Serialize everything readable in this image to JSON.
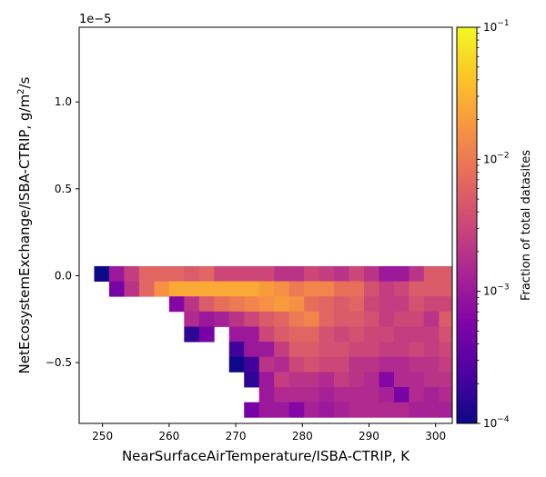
{
  "chart_data": {
    "type": "heatmap",
    "xlabel": "NearSurfaceAirTemperature/ISBA-CTRIP,  K",
    "ylabel_main": "NetEcosystemExchange/ISBA-CTRIP,  g/m",
    "ylabel_sup": "2",
    "ylabel_tail": "/s",
    "y_offset_label": "1e−5",
    "xlim": [
      246.5,
      302.5
    ],
    "ylim": [
      -0.85,
      1.43
    ],
    "x_ticks": [
      250,
      260,
      270,
      280,
      290,
      300
    ],
    "x_tick_labels": [
      "250",
      "260",
      "270",
      "280",
      "290",
      "300"
    ],
    "y_ticks": [
      1.0,
      0.5,
      0.0,
      -0.5
    ],
    "y_tick_labels": [
      "1.0",
      "0.5",
      "0.0",
      "−0.5"
    ],
    "colorbar": {
      "label": "Fraction of total datasites",
      "scale": "log",
      "range": [
        0.0001,
        0.1
      ],
      "colormap": "plasma",
      "ticks": [
        {
          "mantissa": "10",
          "exp": "−1",
          "value": 0.1
        },
        {
          "mantissa": "10",
          "exp": "−2",
          "value": 0.01
        },
        {
          "mantissa": "10",
          "exp": "−3",
          "value": 0.001
        },
        {
          "mantissa": "10",
          "exp": "−4",
          "value": 0.0001
        }
      ]
    },
    "bins": {
      "x_start": 248.75,
      "x_width": 2.25,
      "y_top": 0.055,
      "y_height": 0.087
    },
    "grid": [
      [
        -4.0,
        -3.0,
        -2.6,
        -2.2,
        -2.2,
        -2.2,
        -2.3,
        -2.2,
        -2.5,
        -2.5,
        -2.5,
        -2.5,
        -2.7,
        -2.7,
        -2.5,
        -2.6,
        -2.7,
        -2.5,
        -2.7,
        -3.0,
        -3.0,
        -2.7,
        -2.3,
        -2.3,
        -2.3,
        -2.3,
        -2.3,
        -2.3
      ],
      [
        null,
        -3.3,
        -2.7,
        -2.2,
        -1.8,
        -1.6,
        -1.6,
        -1.6,
        -1.6,
        -1.6,
        -1.6,
        -1.7,
        -1.8,
        -2.0,
        -1.9,
        -1.9,
        -2.1,
        -2.1,
        -2.4,
        -2.6,
        -2.5,
        -2.3,
        -2.3,
        -2.3,
        -2.2,
        -1.6,
        -2.3,
        -2.3
      ],
      [
        null,
        null,
        null,
        null,
        null,
        -3.2,
        -2.7,
        -2.3,
        -2.1,
        -2.0,
        -1.9,
        -1.8,
        -1.7,
        -1.8,
        -2.1,
        -2.2,
        -2.3,
        -2.2,
        -2.5,
        -2.6,
        -2.6,
        -2.4,
        -2.5,
        -2.5,
        -2.2,
        -2.0,
        -1.6,
        -2.4
      ],
      [
        null,
        null,
        null,
        null,
        null,
        null,
        -2.8,
        -3.0,
        -2.9,
        -2.7,
        -2.5,
        -2.3,
        -2.2,
        -2.0,
        -1.9,
        -2.2,
        -2.3,
        -2.3,
        -2.4,
        -2.6,
        -2.5,
        -2.5,
        -2.7,
        -2.3,
        -2.2,
        -2.2,
        -2.2,
        -2.2
      ],
      [
        null,
        null,
        null,
        null,
        null,
        null,
        -3.8,
        -3.3,
        null,
        -3.0,
        -3.0,
        -2.5,
        -2.3,
        -2.2,
        -2.2,
        -2.4,
        -2.5,
        -2.4,
        -2.5,
        -2.5,
        -2.6,
        -2.6,
        -2.6,
        -2.4,
        -2.1,
        -2.3,
        -2.2,
        -2.2
      ],
      [
        null,
        null,
        null,
        null,
        null,
        null,
        null,
        null,
        null,
        -3.7,
        -3.0,
        -3.0,
        -2.6,
        -2.3,
        -2.3,
        -2.4,
        -2.4,
        -2.5,
        -2.5,
        -2.6,
        -2.6,
        -2.5,
        -2.6,
        -2.5,
        -2.2,
        -2.3,
        -2.3,
        -2.2
      ],
      [
        null,
        null,
        null,
        null,
        null,
        null,
        null,
        null,
        null,
        -4.0,
        -3.7,
        -2.7,
        -2.8,
        -2.5,
        -2.4,
        -2.5,
        -2.5,
        -2.7,
        -2.7,
        -2.8,
        -2.8,
        -2.7,
        -2.7,
        -2.6,
        -2.6,
        -2.4,
        -2.4,
        -2.3
      ],
      [
        null,
        null,
        null,
        null,
        null,
        null,
        null,
        null,
        null,
        null,
        -3.8,
        -3.0,
        -2.6,
        -2.7,
        -2.7,
        -2.8,
        -2.6,
        -2.7,
        -2.8,
        -3.2,
        -2.8,
        -2.8,
        -2.7,
        -2.7,
        -2.6,
        -2.6,
        -2.6,
        -2.5
      ],
      [
        null,
        null,
        null,
        null,
        null,
        null,
        null,
        null,
        null,
        null,
        null,
        -3.0,
        -2.8,
        -2.8,
        -2.8,
        -2.9,
        -2.8,
        -2.8,
        -2.8,
        -2.9,
        -3.3,
        -2.8,
        -2.9,
        -2.8,
        -2.7,
        -2.8,
        -2.7,
        -2.8
      ],
      [
        null,
        null,
        null,
        null,
        null,
        null,
        null,
        null,
        null,
        null,
        -3.3,
        -3.0,
        -3.0,
        -3.2,
        -2.9,
        -3.0,
        -2.9,
        -2.8,
        -2.8,
        -2.8,
        -2.8,
        -2.9,
        -2.9,
        -2.9,
        -2.9,
        -2.8,
        -2.8,
        -2.8
      ]
    ]
  }
}
